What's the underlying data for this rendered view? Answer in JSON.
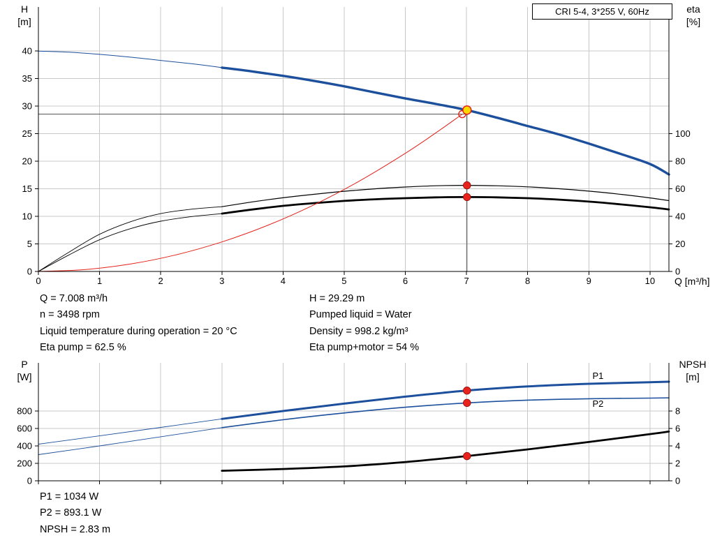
{
  "header_box": {
    "label": "CRI 5-4, 3*255 V, 60Hz"
  },
  "axis_corner_labels": {
    "top_left": [
      "H",
      "[m]"
    ],
    "top_right": [
      "eta",
      "[%]"
    ],
    "bottom_left": [
      "P",
      "[W]"
    ],
    "bottom_right": [
      "NPSH",
      "[m]"
    ]
  },
  "info_panel": {
    "left": [
      "Q = 7.008 m³/h",
      "n = 3498 rpm",
      "Liquid temperature during operation = 20 °C",
      "Eta pump = 62.5 %"
    ],
    "right": [
      "H = 29.29 m",
      "Pumped liquid = Water",
      "Density = 998.2 kg/m³",
      "Eta pump+motor = 54 %"
    ]
  },
  "result_panel": [
    "P1 = 1034 W",
    "P2 = 893.1 W",
    "NPSH = 2.83 m"
  ],
  "colors": {
    "curve_blue": "#1c4f9c",
    "curve_black": "#000000",
    "curve_red": "#e32119",
    "marker_red": "#e8231e",
    "marker_yellow": "#ffd800",
    "grid": "#c9c9c9",
    "axis": "#000000",
    "ref_line": "#3f3f3f"
  },
  "chart_data": [
    {
      "name": "qh-eta-chart",
      "type": "line",
      "title": "CRI 5-4, 3*255 V, 60Hz",
      "xlabel": "Q [m³/h]",
      "ylabel_left": "H [m]",
      "ylabel_right": "eta [%]",
      "xlim": [
        0,
        10.31
      ],
      "ylim_left": [
        0,
        48
      ],
      "ylim_right": [
        0,
        192
      ],
      "x_ticks": [
        0,
        1,
        2,
        3,
        4,
        5,
        6,
        7,
        8,
        9,
        10
      ],
      "x_tick_labels": true,
      "y_ticks_left": [
        0,
        5,
        10,
        15,
        20,
        25,
        30,
        35,
        40
      ],
      "y_ticks_right": [
        0,
        20,
        40,
        60,
        80,
        100
      ],
      "grid": true,
      "duty_point": {
        "q": 7.008,
        "h": 29.29
      },
      "series": [
        {
          "name": "head-curve-extension",
          "axis": "left",
          "color": "blue",
          "width": 1,
          "x": [
            0,
            0.5,
            1,
            1.5,
            2,
            2.5,
            3
          ],
          "y": [
            40,
            39.8,
            39.4,
            38.9,
            38.3,
            37.7,
            37
          ]
        },
        {
          "name": "head-curve",
          "axis": "left",
          "color": "blue",
          "width": 3.4,
          "x": [
            3,
            3.5,
            4,
            4.5,
            5,
            5.5,
            6,
            6.5,
            7,
            7.5,
            8,
            8.5,
            9,
            9.5,
            10,
            10.31
          ],
          "y": [
            37,
            36.3,
            35.5,
            34.6,
            33.6,
            32.5,
            31.4,
            30.4,
            29.29,
            27.9,
            26.4,
            24.9,
            23.2,
            21.4,
            19.5,
            17.6
          ]
        },
        {
          "name": "eta-pump-extension",
          "axis": "right",
          "color": "black",
          "width": 0.9,
          "x": [
            0,
            0.5,
            1,
            1.5,
            2,
            2.5,
            3
          ],
          "y": [
            0,
            14,
            27,
            36,
            42,
            45.2,
            47
          ]
        },
        {
          "name": "eta-pump-curve",
          "axis": "right",
          "color": "black",
          "width": 1.2,
          "x": [
            3,
            3.5,
            4,
            4.5,
            5,
            5.5,
            6,
            6.5,
            7,
            7.5,
            8,
            8.5,
            9,
            9.5,
            10,
            10.31
          ],
          "y": [
            47,
            50.5,
            53.5,
            56,
            58.2,
            60,
            61.3,
            62.2,
            62.5,
            62.2,
            61.4,
            60.1,
            58.3,
            56.1,
            53.4,
            51.4
          ]
        },
        {
          "name": "eta-pump-motor-extension",
          "axis": "right",
          "color": "black",
          "width": 0.9,
          "x": [
            0,
            0.5,
            1,
            1.5,
            2,
            2.5,
            3
          ],
          "y": [
            0,
            12,
            23,
            31,
            36.5,
            39.8,
            42
          ]
        },
        {
          "name": "eta-pump-motor-curve",
          "axis": "right",
          "color": "black",
          "width": 2.8,
          "x": [
            3,
            3.5,
            4,
            4.5,
            5,
            5.5,
            6,
            6.5,
            7,
            7.5,
            8,
            8.5,
            9,
            9.5,
            10,
            10.31
          ],
          "y": [
            42,
            45,
            47.6,
            49.6,
            51.2,
            52.4,
            53.2,
            53.8,
            54,
            53.8,
            53.2,
            52.2,
            50.7,
            48.8,
            46.6,
            45
          ]
        },
        {
          "name": "system-curve",
          "axis": "left",
          "color": "red",
          "width": 1,
          "x": [
            0,
            0.75,
            1.5,
            2.25,
            3,
            3.75,
            4.5,
            5.25,
            6,
            6.5,
            6.93
          ],
          "y": [
            0,
            0.33,
            1.34,
            3.01,
            5.36,
            8.37,
            12.06,
            16.42,
            21.44,
            25.16,
            28.55
          ]
        }
      ],
      "ref_lines": [
        {
          "name": "duty-flow-line",
          "type": "v",
          "axis": "left",
          "x": 7.008,
          "y_from": 0,
          "y_to": 29.29
        },
        {
          "name": "duty-head-line",
          "type": "h",
          "axis": "left",
          "y": 28.55,
          "x_from": 0,
          "x_to": 7.008
        }
      ],
      "markers": [
        {
          "name": "rated-duty-point",
          "x": 6.93,
          "y": 28.55,
          "axis": "left",
          "style": "open"
        },
        {
          "name": "eta-pump-duty-point",
          "x": 7.008,
          "y": 62.5,
          "axis": "right",
          "style": "red"
        },
        {
          "name": "eta-pump-motor-duty-point",
          "x": 7.008,
          "y": 54,
          "axis": "right",
          "style": "red"
        },
        {
          "name": "duty-point",
          "x": 7.008,
          "y": 29.29,
          "axis": "left",
          "style": "yellow",
          "interactable": true
        }
      ]
    },
    {
      "name": "power-npsh-chart",
      "type": "line",
      "xlabel": "",
      "ylabel_left": "P [W]",
      "ylabel_right": "NPSH [m]",
      "xlim": [
        0,
        10.31
      ],
      "ylim_left": [
        0,
        1352
      ],
      "ylim_right": [
        0,
        13.52
      ],
      "x_ticks": [
        0,
        1,
        2,
        3,
        4,
        5,
        6,
        7,
        8,
        9,
        10
      ],
      "x_tick_labels": false,
      "y_ticks_left": [
        0,
        200,
        400,
        600,
        800
      ],
      "y_ticks_right": [
        0,
        2,
        4,
        6,
        8
      ],
      "grid": true,
      "series": [
        {
          "name": "p1-extension",
          "axis": "left",
          "color": "blue",
          "width": 0.9,
          "x": [
            0,
            1,
            2,
            3
          ],
          "y": [
            420,
            515,
            612,
            710
          ]
        },
        {
          "name": "p1-curve",
          "axis": "left",
          "color": "blue",
          "width": 3,
          "x": [
            3,
            4,
            5,
            6,
            7,
            8,
            9,
            10,
            10.31
          ],
          "y": [
            710,
            800,
            885,
            965,
            1034,
            1082,
            1112,
            1130,
            1136
          ]
        },
        {
          "name": "p2-extension",
          "axis": "left",
          "color": "blue",
          "width": 0.9,
          "x": [
            0,
            1,
            2,
            3
          ],
          "y": [
            300,
            400,
            505,
            610
          ]
        },
        {
          "name": "p2-curve",
          "axis": "left",
          "color": "blue",
          "width": 1.6,
          "x": [
            3,
            4,
            5,
            6,
            7,
            8,
            9,
            10,
            10.31
          ],
          "y": [
            610,
            700,
            778,
            843,
            893,
            925,
            941,
            948,
            951
          ]
        },
        {
          "name": "npsh-curve",
          "axis": "right",
          "color": "black",
          "width": 2.8,
          "x": [
            3,
            4,
            5,
            6,
            7,
            8,
            9,
            10,
            10.31
          ],
          "y": [
            1.15,
            1.35,
            1.65,
            2.15,
            2.83,
            3.6,
            4.45,
            5.35,
            5.65
          ]
        }
      ],
      "markers": [
        {
          "name": "p1-duty-point",
          "x": 7.008,
          "y": 1034,
          "axis": "left",
          "style": "red"
        },
        {
          "name": "p2-duty-point",
          "x": 7.008,
          "y": 893,
          "axis": "left",
          "style": "red"
        },
        {
          "name": "npsh-duty-point",
          "x": 7.008,
          "y": 2.83,
          "axis": "right",
          "style": "red"
        }
      ],
      "labels": [
        {
          "name": "p1-curve-label",
          "text": "P1",
          "x": 9.15,
          "y": 1208,
          "axis": "left"
        },
        {
          "name": "p2-curve-label",
          "text": "P2",
          "x": 9.15,
          "y": 888,
          "axis": "left"
        }
      ]
    }
  ]
}
